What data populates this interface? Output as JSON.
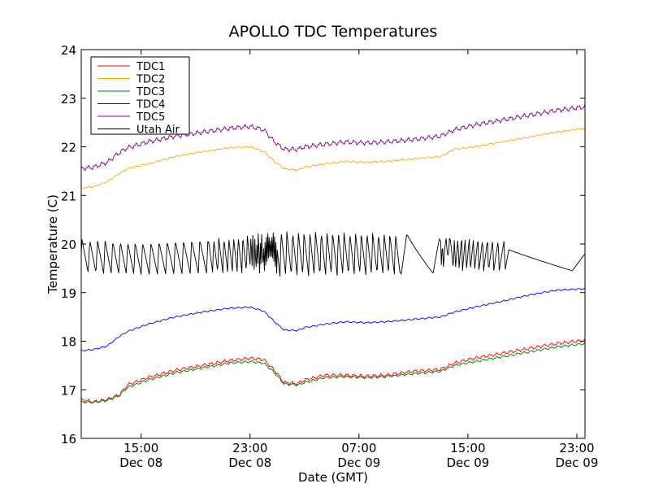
{
  "chart_data": {
    "type": "line",
    "title": "APOLLO TDC Temperatures",
    "xlabel": "Date (GMT)",
    "ylabel": "Temperature (C)",
    "xlim": [
      10.6,
      47.6
    ],
    "ylim": [
      16,
      24
    ],
    "yticks": [
      16,
      17,
      18,
      19,
      20,
      21,
      22,
      23,
      24
    ],
    "xticks": [
      {
        "at": 15,
        "time": "15:00",
        "date": "Dec 08"
      },
      {
        "at": 23,
        "time": "23:00",
        "date": "Dec 08"
      },
      {
        "at": 31,
        "time": "07:00",
        "date": "Dec 09"
      },
      {
        "at": 39,
        "time": "15:00",
        "date": "Dec 09"
      },
      {
        "at": 47,
        "time": "23:00",
        "date": "Dec 09"
      }
    ],
    "legend_position": "top-left",
    "x_units": "hours since Dec 08 00:00 GMT",
    "series": [
      {
        "name": "TDC1",
        "color": "#ff0000",
        "x": [
          10.6,
          11.5,
          12.5,
          13.4,
          14.0,
          15.5,
          17.5,
          19.5,
          21.5,
          23.0,
          24.0,
          24.8,
          25.5,
          26.5,
          27.0,
          28.5,
          30.0,
          31.5,
          33.0,
          35.0,
          37.0,
          38.0,
          39.5,
          41.5,
          43.5,
          45.5,
          47.6
        ],
        "y": [
          16.8,
          16.75,
          16.8,
          16.9,
          17.1,
          17.25,
          17.4,
          17.5,
          17.6,
          17.65,
          17.62,
          17.4,
          17.15,
          17.13,
          17.2,
          17.3,
          17.3,
          17.28,
          17.3,
          17.38,
          17.42,
          17.55,
          17.65,
          17.75,
          17.85,
          17.95,
          18.02
        ],
        "wiggle": 0.025,
        "period": 0.5
      },
      {
        "name": "TDC2",
        "color": "#ffa500",
        "x": [
          10.6,
          11.5,
          12.5,
          13.4,
          14.0,
          15.5,
          17.5,
          19.5,
          21.5,
          23.0,
          24.0,
          24.8,
          25.5,
          26.5,
          27.0,
          28.5,
          30.0,
          31.5,
          33.0,
          35.0,
          37.0,
          38.0,
          39.5,
          41.5,
          43.5,
          45.5,
          47.6
        ],
        "y": [
          21.15,
          21.18,
          21.28,
          21.45,
          21.55,
          21.65,
          21.8,
          21.9,
          21.98,
          22.0,
          21.9,
          21.7,
          21.55,
          21.52,
          21.58,
          21.65,
          21.7,
          21.68,
          21.7,
          21.75,
          21.8,
          21.95,
          22.0,
          22.1,
          22.2,
          22.3,
          22.38
        ],
        "wiggle": 0.012,
        "period": 0.5
      },
      {
        "name": "TDC3",
        "color": "#008000",
        "x": [
          10.6,
          11.5,
          12.5,
          13.4,
          14.0,
          15.5,
          17.5,
          19.5,
          21.5,
          23.0,
          24.0,
          24.8,
          25.5,
          26.5,
          27.0,
          28.5,
          30.0,
          31.5,
          33.0,
          35.0,
          37.0,
          38.0,
          39.5,
          41.5,
          43.5,
          45.5,
          47.6
        ],
        "y": [
          16.75,
          16.74,
          16.78,
          16.88,
          17.05,
          17.2,
          17.35,
          17.45,
          17.55,
          17.58,
          17.55,
          17.35,
          17.12,
          17.1,
          17.15,
          17.25,
          17.27,
          17.25,
          17.27,
          17.33,
          17.38,
          17.5,
          17.58,
          17.68,
          17.78,
          17.88,
          17.95
        ],
        "wiggle": 0.018,
        "period": 0.5
      },
      {
        "name": "TDC4",
        "color": "#0000ff",
        "x": [
          10.6,
          11.5,
          12.5,
          13.4,
          14.0,
          15.5,
          17.5,
          19.5,
          21.5,
          23.0,
          24.0,
          24.8,
          25.5,
          26.5,
          27.0,
          28.5,
          30.0,
          31.5,
          33.0,
          35.0,
          37.0,
          38.0,
          39.5,
          41.5,
          43.5,
          45.5,
          47.6
        ],
        "y": [
          17.8,
          17.83,
          17.9,
          18.1,
          18.2,
          18.35,
          18.5,
          18.6,
          18.68,
          18.7,
          18.62,
          18.4,
          18.23,
          18.22,
          18.28,
          18.35,
          18.4,
          18.38,
          18.4,
          18.45,
          18.5,
          18.6,
          18.7,
          18.82,
          18.95,
          19.05,
          19.08
        ],
        "wiggle": 0.012,
        "period": 0.5
      },
      {
        "name": "TDC5",
        "color": "#800080",
        "x": [
          10.6,
          11.5,
          12.5,
          13.4,
          14.0,
          15.5,
          17.5,
          19.5,
          21.5,
          23.0,
          24.0,
          24.8,
          25.5,
          26.5,
          27.0,
          28.5,
          30.0,
          31.5,
          33.0,
          35.0,
          37.0,
          38.0,
          39.5,
          41.5,
          43.5,
          45.5,
          47.6
        ],
        "y": [
          21.55,
          21.58,
          21.68,
          21.88,
          21.98,
          22.1,
          22.22,
          22.3,
          22.38,
          22.42,
          22.35,
          22.1,
          21.95,
          21.95,
          22.0,
          22.05,
          22.1,
          22.08,
          22.1,
          22.15,
          22.22,
          22.35,
          22.45,
          22.55,
          22.65,
          22.75,
          22.82
        ],
        "wiggle": 0.035,
        "period": 0.5
      },
      {
        "name": "Utah Air",
        "color": "#000000",
        "x": [
          10.6,
          15.0,
          20.0,
          23.0,
          25.0,
          30.0,
          34.0,
          37.0,
          38.0,
          42.0,
          47.6
        ],
        "y": [
          19.75,
          19.7,
          19.75,
          19.8,
          19.8,
          19.8,
          19.8,
          19.75,
          19.8,
          19.75,
          19.75
        ],
        "amp": [
          0.35,
          0.33,
          0.35,
          0.4,
          0.47,
          0.45,
          0.42,
          0.35,
          0.38,
          0.3,
          0.3
        ],
        "period": [
          0.62,
          0.6,
          0.6,
          0.55,
          0.42,
          0.42,
          0.42,
          0.45,
          0.62,
          0.85,
          0.95
        ],
        "sawtooth": true
      }
    ]
  }
}
